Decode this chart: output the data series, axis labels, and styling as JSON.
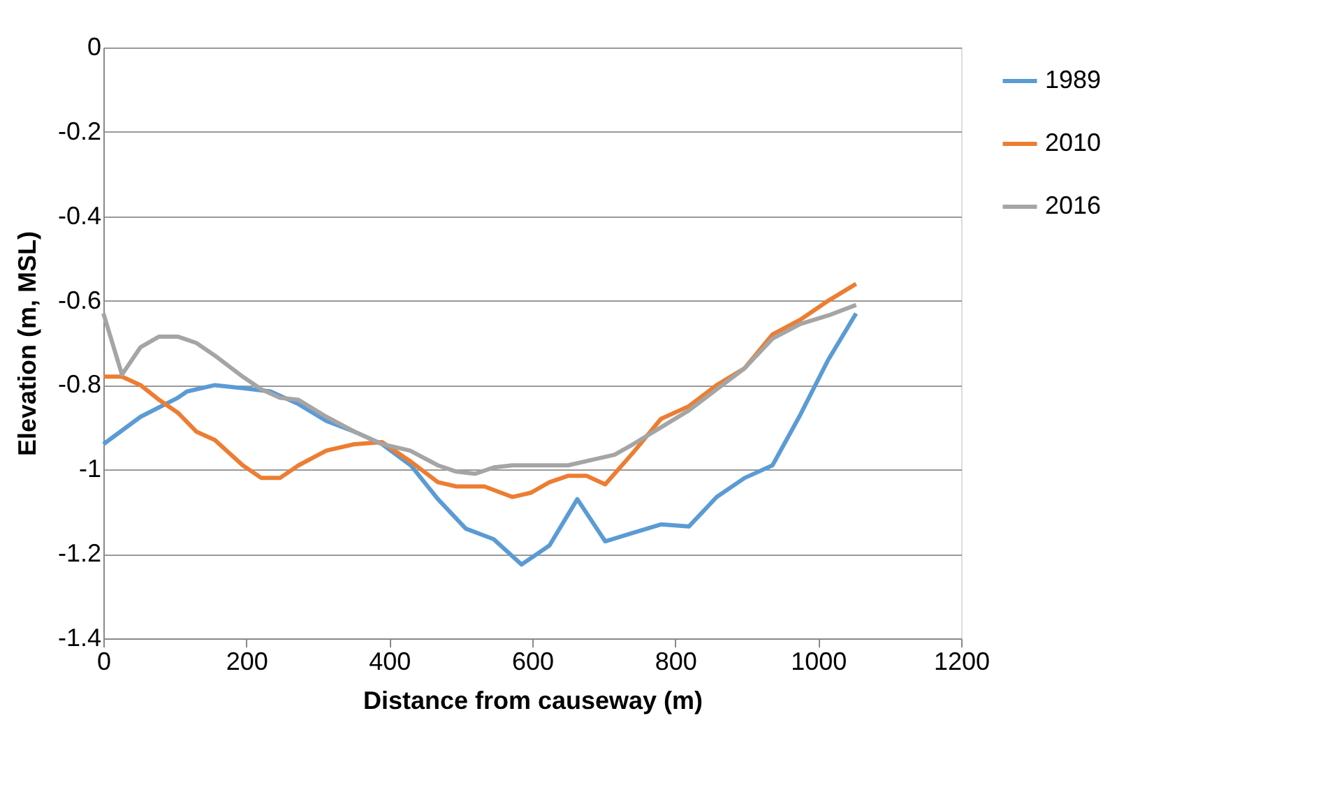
{
  "chart_data": {
    "type": "line",
    "xlabel": "Distance from causeway (m)",
    "ylabel": "Elevation (m, MSL)",
    "xlim": [
      0,
      1200
    ],
    "xticks": [
      0,
      200,
      400,
      600,
      800,
      1000,
      1200
    ],
    "ylim": [
      -1.4,
      0
    ],
    "yticks": [
      -1.4,
      -1.2,
      -1,
      -0.8,
      -0.6,
      -0.4,
      -0.2,
      0
    ],
    "grid": "y",
    "legend": "right",
    "marker": "none",
    "line_style": "solid",
    "series": [
      {
        "name": "1989",
        "color": "#5b9bd5",
        "x": [
          0,
          52,
          104,
          117,
          156,
          195,
          234,
          273,
          312,
          351,
          390,
          430,
          468,
          507,
          546,
          585,
          624,
          663,
          702,
          741,
          780,
          819,
          858,
          897,
          936,
          975,
          1014,
          1053
        ],
        "values": [
          -0.94,
          -0.875,
          -0.83,
          -0.815,
          -0.8,
          -0.807,
          -0.815,
          -0.845,
          -0.885,
          -0.91,
          -0.94,
          -0.99,
          -1.07,
          -1.14,
          -1.165,
          -1.225,
          -1.18,
          -1.07,
          -1.17,
          -1.15,
          -1.13,
          -1.135,
          -1.065,
          -1.02,
          -0.99,
          -0.87,
          -0.74,
          -0.63
        ]
      },
      {
        "name": "2010",
        "color": "#ed7d31",
        "x": [
          0,
          26,
          52,
          78,
          104,
          130,
          156,
          195,
          221,
          247,
          273,
          312,
          351,
          390,
          429,
          468,
          494,
          533,
          572,
          598,
          624,
          650,
          676,
          702,
          741,
          780,
          819,
          858,
          897,
          936,
          975,
          1014,
          1053
        ],
        "values": [
          -0.78,
          -0.78,
          -0.8,
          -0.835,
          -0.865,
          -0.91,
          -0.93,
          -0.99,
          -1.02,
          -1.02,
          -0.99,
          -0.955,
          -0.94,
          -0.935,
          -0.98,
          -1.03,
          -1.04,
          -1.04,
          -1.065,
          -1.055,
          -1.03,
          -1.015,
          -1.015,
          -1.035,
          -0.96,
          -0.88,
          -0.85,
          -0.8,
          -0.76,
          -0.68,
          -0.645,
          -0.6,
          -0.56
        ]
      },
      {
        "name": "2016",
        "color": "#a5a5a5",
        "x": [
          0,
          26,
          52,
          78,
          104,
          130,
          156,
          195,
          221,
          247,
          273,
          312,
          351,
          390,
          429,
          468,
          494,
          520,
          546,
          572,
          611,
          650,
          689,
          715,
          741,
          780,
          819,
          858,
          897,
          936,
          975,
          1014,
          1053
        ],
        "values": [
          -0.63,
          -0.775,
          -0.71,
          -0.685,
          -0.685,
          -0.7,
          -0.73,
          -0.78,
          -0.81,
          -0.83,
          -0.835,
          -0.875,
          -0.91,
          -0.94,
          -0.955,
          -0.99,
          -1.005,
          -1.01,
          -0.995,
          -0.99,
          -0.99,
          -0.99,
          -0.975,
          -0.965,
          -0.94,
          -0.9,
          -0.86,
          -0.81,
          -0.76,
          -0.69,
          -0.655,
          -0.635,
          -0.61
        ]
      }
    ]
  }
}
